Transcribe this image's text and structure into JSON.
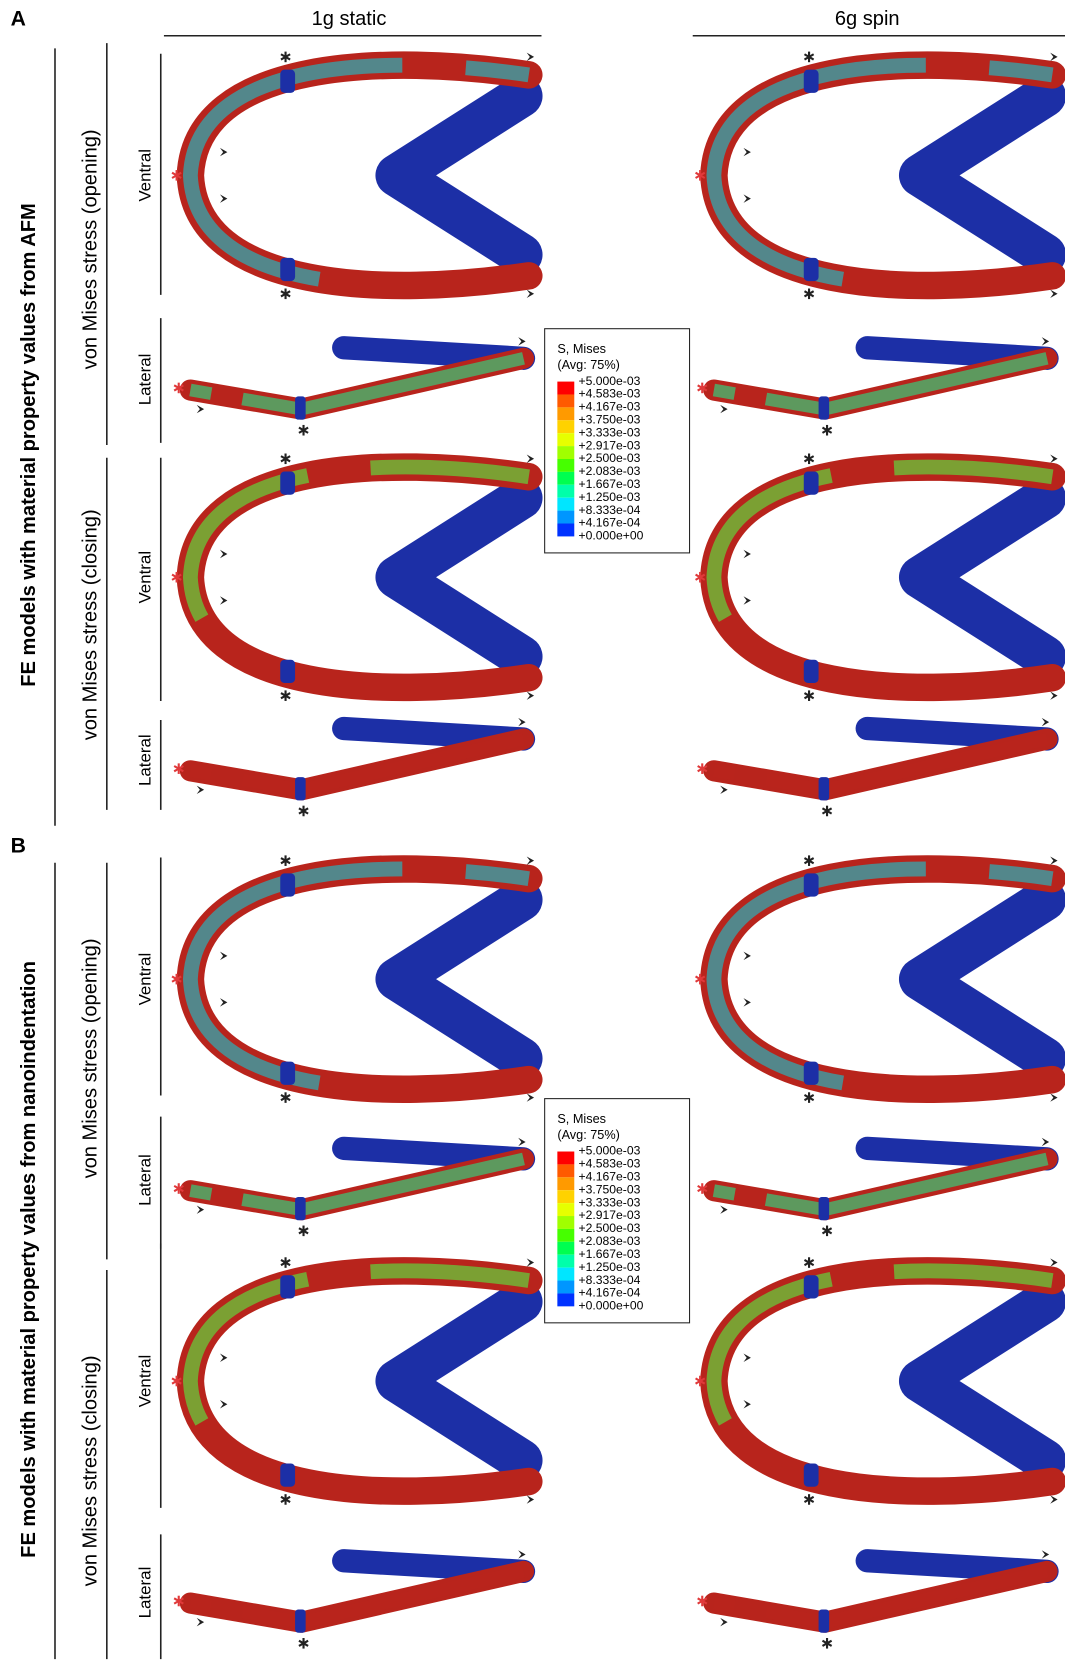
{
  "columns": [
    "1g static",
    "6g spin"
  ],
  "panels": [
    {
      "label": "A",
      "title": "FE models with material property values from AFM",
      "groups": [
        {
          "title": "von Mises stress (opening)",
          "views": [
            "Ventral",
            "Lateral"
          ]
        },
        {
          "title": "von Mises stress (closing)",
          "views": [
            "Ventral",
            "Lateral"
          ]
        }
      ]
    },
    {
      "label": "B",
      "title": "FE models with material property values from nanoindentation",
      "groups": [
        {
          "title": "von Mises stress (opening)",
          "views": [
            "Ventral",
            "Lateral"
          ]
        },
        {
          "title": "von Mises stress (closing)",
          "views": [
            "Ventral",
            "Lateral"
          ]
        }
      ]
    }
  ],
  "legend": {
    "title": "S, Mises",
    "subtitle": "(Avg: 75%)",
    "entries": [
      "+5.000e-03",
      "+4.583e-03",
      "+4.167e-03",
      "+3.750e-03",
      "+3.333e-03",
      "+2.917e-03",
      "+2.500e-03",
      "+2.083e-03",
      "+1.667e-03",
      "+1.250e-03",
      "+8.333e-04",
      "+4.167e-04",
      "+0.000e+00"
    ],
    "colors": [
      "#ff0000",
      "#ff5a00",
      "#ff9a00",
      "#ffd200",
      "#e6ff00",
      "#a0ff00",
      "#46ff00",
      "#00ff50",
      "#00ffaa",
      "#00e6ff",
      "#0096ff",
      "#0032ff"
    ]
  }
}
